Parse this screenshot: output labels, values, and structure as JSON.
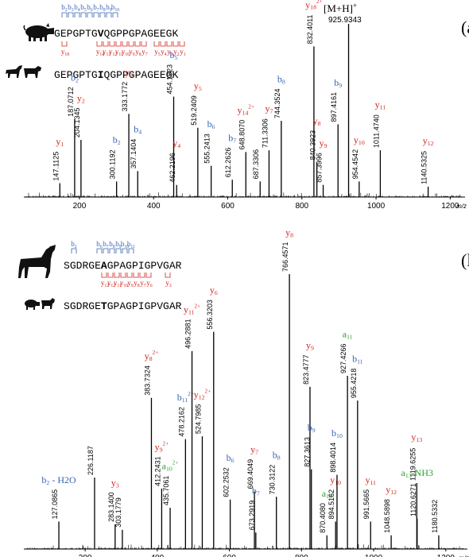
{
  "colors": {
    "b": "#3a63b5",
    "y": "#d2261e",
    "a": "#2ea32e",
    "text": "#000000",
    "axis": "#000000"
  },
  "panels": [
    {
      "panel_label": "(a",
      "precursor_label": "[M+H]",
      "precursor_charge": "+",
      "precursor_mz": "925.9343",
      "species_top_icons": [
        "pig-icon"
      ],
      "species_bottom_icons": [
        "horse-icon",
        "cow-icon"
      ],
      "peptide_top": "GEPGPTGVQGPPGPAGEEGK",
      "peptide_top_bold_index": 7,
      "peptide_bottom": "GEPGPTGIQGPPGPAGEEGK",
      "peptide_bottom_bold_index": 7,
      "b_ion_ladder": [
        "2",
        "3",
        "4",
        "5",
        "6",
        "7",
        "8",
        "9",
        "10"
      ],
      "y_ion_ladder": [
        "18",
        "14",
        "13",
        "12",
        "11",
        "10",
        "9",
        "8",
        "7",
        "5",
        "4",
        "3",
        "2",
        "1"
      ],
      "y18_ladder_charge": "2+"
    },
    {
      "panel_label": "(l",
      "species_top_icons": [
        "horse-icon"
      ],
      "species_bottom_icons": [
        "pig-icon",
        "cow-icon"
      ],
      "peptide_top": "SGDRGEAGPAGPIGPVGAR",
      "peptide_top_bold_index": 6,
      "peptide_bottom": "SGDRGETGPAGPIGPVGAR",
      "peptide_bottom_bold_index": 6,
      "b_ion_ladder": [
        "2",
        "6",
        "7",
        "8",
        "9",
        "10",
        "11"
      ],
      "y_ion_ladder": [
        "13",
        "12",
        "11",
        "10",
        "9",
        "8",
        "7",
        "6",
        "3"
      ]
    }
  ],
  "chart_data": [
    {
      "type": "bar",
      "xlabel": "m/z",
      "xlim": [
        50,
        1240
      ],
      "xticks": [
        "200",
        "400",
        "600",
        "800",
        "1000",
        "1200"
      ],
      "peaks": [
        {
          "x": 147.1125,
          "y": 8,
          "label": "147.1125",
          "ion": "y",
          "num": "1",
          "charge": ""
        },
        {
          "x": 187.0712,
          "y": 45,
          "label": "187.0712",
          "ion": "b",
          "num": "2",
          "charge": ""
        },
        {
          "x": 204.1345,
          "y": 33,
          "label": "204.1345",
          "ion": "y",
          "num": "2",
          "charge": ""
        },
        {
          "x": 300.1192,
          "y": 9,
          "label": "300.1192",
          "ion": "b",
          "num": "2",
          "charge": ""
        },
        {
          "x": 333.1772,
          "y": 48,
          "label": "333.1772",
          "ion": "y",
          "num": "3",
          "charge": ""
        },
        {
          "x": 357.1404,
          "y": 15,
          "label": "357.1404",
          "ion": "b",
          "num": "4",
          "charge": ""
        },
        {
          "x": 454.1923,
          "y": 58,
          "label": "454.1923",
          "ion": "b",
          "num": "5",
          "charge": ""
        },
        {
          "x": 462.2196,
          "y": 7,
          "label": "462.2196",
          "ion": "y",
          "num": "4",
          "charge": ""
        },
        {
          "x": 519.2409,
          "y": 40,
          "label": "519.2409",
          "ion": "y",
          "num": "5",
          "charge": ""
        },
        {
          "x": 555.2413,
          "y": 18,
          "label": "555.2413",
          "ion": "b",
          "num": "6",
          "charge": ""
        },
        {
          "x": 612.2626,
          "y": 10,
          "label": "612.2626",
          "ion": "b",
          "num": "7",
          "charge": ""
        },
        {
          "x": 648.807,
          "y": 26,
          "label": "648.8070",
          "ion": "y",
          "num": "14",
          "charge": "2+"
        },
        {
          "x": 687.3306,
          "y": 9,
          "label": "687.3306",
          "ion": "",
          "num": "",
          "charge": ""
        },
        {
          "x": 711.3306,
          "y": 27,
          "label": "711.3306",
          "ion": "y",
          "num": "7",
          "charge": ""
        },
        {
          "x": 744.3524,
          "y": 44,
          "label": "744.3524",
          "ion": "b",
          "num": "8",
          "charge": ""
        },
        {
          "x": 832.4011,
          "y": 87,
          "label": "832.4011",
          "ion": "y",
          "num": "18",
          "charge": "2+"
        },
        {
          "x": 840.3923,
          "y": 20,
          "label": "840.3923",
          "ion": "y",
          "num": "8",
          "charge": ""
        },
        {
          "x": 857.3996,
          "y": 7,
          "label": "857.3996",
          "ion": "y",
          "num": "9",
          "charge": ""
        },
        {
          "x": 897.4161,
          "y": 42,
          "label": "897.4161",
          "ion": "b",
          "num": "9",
          "charge": ""
        },
        {
          "x": 925.9343,
          "y": 100,
          "label": "",
          "ion": "",
          "num": "",
          "charge": ""
        },
        {
          "x": 954.4542,
          "y": 9,
          "label": "954.4542",
          "ion": "y",
          "num": "10",
          "charge": ""
        },
        {
          "x": 1011.474,
          "y": 27,
          "label": "1011.4740",
          "ion": "y",
          "num": "11",
          "charge": ""
        },
        {
          "x": 1140.5325,
          "y": 6,
          "label": "1140.5325",
          "ion": "y",
          "num": "12",
          "charge": ""
        }
      ]
    },
    {
      "type": "bar",
      "xlabel": "m/z",
      "xlim": [
        30,
        1260
      ],
      "xticks": [
        "200",
        "400",
        "600",
        "800",
        "1000",
        "1200"
      ],
      "peaks": [
        {
          "x": 127.0865,
          "y": 10,
          "label": "127.0865",
          "ion": "b",
          "num": "2",
          "charge": "",
          "suffix": " - H2O"
        },
        {
          "x": 226.1187,
          "y": 26,
          "label": "226.1187",
          "ion": "",
          "num": "",
          "charge": ""
        },
        {
          "x": 283.14,
          "y": 9,
          "label": "283.1400",
          "ion": "y",
          "num": "3",
          "charge": ""
        },
        {
          "x": 303.1779,
          "y": 7,
          "label": "303.1779",
          "ion": "",
          "num": "",
          "charge": ""
        },
        {
          "x": 383.7324,
          "y": 55,
          "label": "383.7324",
          "ion": "y",
          "num": "8",
          "charge": "2+"
        },
        {
          "x": 412.2431,
          "y": 22,
          "label": "412.2431",
          "ion": "y",
          "num": "9",
          "charge": "2+"
        },
        {
          "x": 435.7061,
          "y": 15,
          "label": "435.7061",
          "ion": "a",
          "num": "10",
          "charge": "2+"
        },
        {
          "x": 478.2162,
          "y": 40,
          "label": "478.2162",
          "ion": "b",
          "num": "11",
          "charge": "2+"
        },
        {
          "x": 496.2881,
          "y": 72,
          "label": "496.2881",
          "ion": "y",
          "num": "11",
          "charge": "2+"
        },
        {
          "x": 524.7985,
          "y": 41,
          "label": "524.7985",
          "ion": "y",
          "num": "12",
          "charge": "2+"
        },
        {
          "x": 556.3203,
          "y": 79,
          "label": "556.3203",
          "ion": "y",
          "num": "6",
          "charge": ""
        },
        {
          "x": 602.2532,
          "y": 18,
          "label": "602.2532",
          "ion": "b",
          "num": "6",
          "charge": ""
        },
        {
          "x": 669.4049,
          "y": 21,
          "label": "669.4049",
          "ion": "y",
          "num": "7",
          "charge": ""
        },
        {
          "x": 673.2919,
          "y": 6,
          "label": "673.2919",
          "ion": "b",
          "num": "7",
          "charge": ""
        },
        {
          "x": 730.3122,
          "y": 19,
          "label": "730.3122",
          "ion": "b",
          "num": "8",
          "charge": ""
        },
        {
          "x": 766.4571,
          "y": 100,
          "label": "766.4571",
          "ion": "y",
          "num": "8",
          "charge": ""
        },
        {
          "x": 823.4777,
          "y": 59,
          "label": "823.4777",
          "ion": "y",
          "num": "9",
          "charge": ""
        },
        {
          "x": 827.3613,
          "y": 29,
          "label": "827.3613",
          "ion": "b",
          "num": "9",
          "charge": ""
        },
        {
          "x": 870.408,
          "y": 5,
          "label": "870.4080",
          "ion": "a",
          "num": "10",
          "charge": ""
        },
        {
          "x": 894.5162,
          "y": 10,
          "label": "894.5162",
          "ion": "y",
          "num": "10",
          "charge": ""
        },
        {
          "x": 898.4014,
          "y": 27,
          "label": "898.4014",
          "ion": "b",
          "num": "10",
          "charge": ""
        },
        {
          "x": 927.4266,
          "y": 63,
          "label": "927.4266",
          "ion": "a",
          "num": "11",
          "charge": ""
        },
        {
          "x": 955.4218,
          "y": 54,
          "label": "955.4218",
          "ion": "b",
          "num": "11",
          "charge": ""
        },
        {
          "x": 991.5665,
          "y": 10,
          "label": "991.5665",
          "ion": "y",
          "num": "11",
          "charge": ""
        },
        {
          "x": 1048.5898,
          "y": 5,
          "label": "1048.5898",
          "ion": "y",
          "num": "12",
          "charge": ""
        },
        {
          "x": 1119.6255,
          "y": 24,
          "label": "1119.6255",
          "ion": "y",
          "num": "13",
          "charge": ""
        },
        {
          "x": 1120.6271,
          "y": 11,
          "label": "1120.6271",
          "ion": "a",
          "num": "13",
          "charge": "",
          "suffix": "-NH3"
        },
        {
          "x": 1180.5332,
          "y": 5,
          "label": "1180.5332",
          "ion": "",
          "num": "",
          "charge": ""
        }
      ]
    }
  ]
}
